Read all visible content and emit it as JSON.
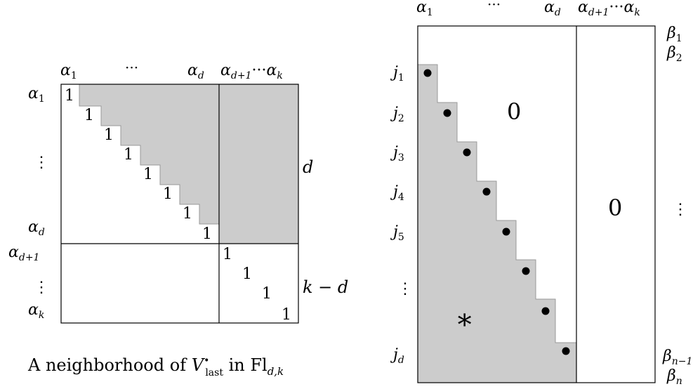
{
  "left": {
    "col_labels": {
      "a1": "α",
      "a1_sub": "1",
      "dots": "···",
      "ad": "α",
      "ad_sub": "d",
      "adk": "α",
      "adk_sub1": "d+1",
      "adk_dots": "···",
      "adk_k": "α",
      "adk_sub2": "k"
    },
    "row_labels": {
      "a1": "α",
      "a1_sub": "1",
      "vdots": "⋮",
      "ad": "α",
      "ad_sub": "d",
      "ad1": "α",
      "ad1_sub": "d+1",
      "vdots2": "⋮",
      "ak": "α",
      "ak_sub": "k"
    },
    "ones_top": [
      "1",
      "1",
      "1",
      "1",
      "1",
      "1",
      "1",
      "1"
    ],
    "ones_bottom": [
      "1",
      "1",
      "1",
      "1"
    ],
    "side_d": "d",
    "side_kd": "k − d",
    "caption_prefix": "A neighborhood of ",
    "caption_V": "V",
    "caption_bullet": "•",
    "caption_last": "last",
    "caption_in": " in ",
    "caption_Fl": "Fl",
    "caption_sub": "d,k"
  },
  "right": {
    "col_labels": {
      "a1": "α",
      "a1_sub": "1",
      "dots": "···",
      "ad": "α",
      "ad_sub": "d",
      "adk": "α",
      "adk_sub1": "d+1",
      "adk_dots": "···",
      "adk_k": "α",
      "adk_sub2": "k"
    },
    "row_labels": [
      "j1",
      "j2",
      "j3",
      "j4",
      "j5",
      "⋮",
      "jd"
    ],
    "beta_labels": {
      "b1": "β",
      "b1_sub": "1",
      "b2": "β",
      "b2_sub": "2",
      "vdots": "⋮",
      "bn1": "β",
      "bn1_sub": "n−1",
      "bn": "β",
      "bn_sub": "n"
    },
    "zero_upper": "0",
    "zero_right": "0",
    "star": "∗"
  }
}
